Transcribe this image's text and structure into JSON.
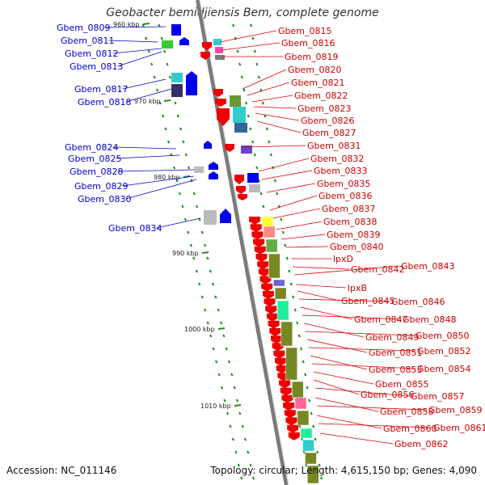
{
  "title": "Geobacter bemidjiensis Bem, complete genome",
  "accession": "Accession: NC_011146",
  "topology": "Topology: circular; Length: 4,615,150 bp; Genes: 4,090",
  "colors": {
    "plus_strand": "#0000ff",
    "minus_strand": "#ff0000",
    "label_left": "#0000cc",
    "label_right": "#cc0000",
    "backbone": "#888888",
    "tick": "#228b22"
  },
  "kbp_labels": [
    "960 kbp",
    "970 kbp",
    "980 kbp",
    "990 kbp",
    "1000 kbp",
    "1010 kbp"
  ],
  "left_genes": [
    "Gbem_0809",
    "Gbem_0811",
    "Gbem_0812",
    "Gbem_0813",
    "Gbem_0817",
    "Gbem_0818",
    "Gbem_0824",
    "Gbem_0825",
    "Gbem_0828",
    "Gbem_0829",
    "Gbem_0830",
    "Gbem_0834"
  ],
  "right_genes": [
    "Gbem_0815",
    "Gbem_0816",
    "Gbem_0819",
    "Gbem_0820",
    "Gbem_0821",
    "Gbem_0822",
    "Gbem_0823",
    "Gbem_0826",
    "Gbem_0827",
    "Gbem_0831",
    "Gbem_0832",
    "Gbem_0833",
    "Gbem_0835",
    "Gbem_0836",
    "Gbem_0837",
    "Gbem_0838",
    "Gbem_0839",
    "Gbem_0840",
    "lpxD",
    "Gbem_0842",
    "Gbem_0843",
    "lpxB",
    "Gbem_0845",
    "Gbem_0846",
    "Gbem_0847",
    "Gbem_0848",
    "Gbem_0849",
    "Gbem_0850",
    "Gbem_0851",
    "Gbem_0852",
    "Gbem_0853",
    "Gbem_0854",
    "Gbem_0855",
    "Gbem_0856",
    "Gbem_0857",
    "Gbem_0858",
    "Gbem_0859",
    "Gbem_0860",
    "Gbem_0861",
    "Gbem_0862"
  ]
}
